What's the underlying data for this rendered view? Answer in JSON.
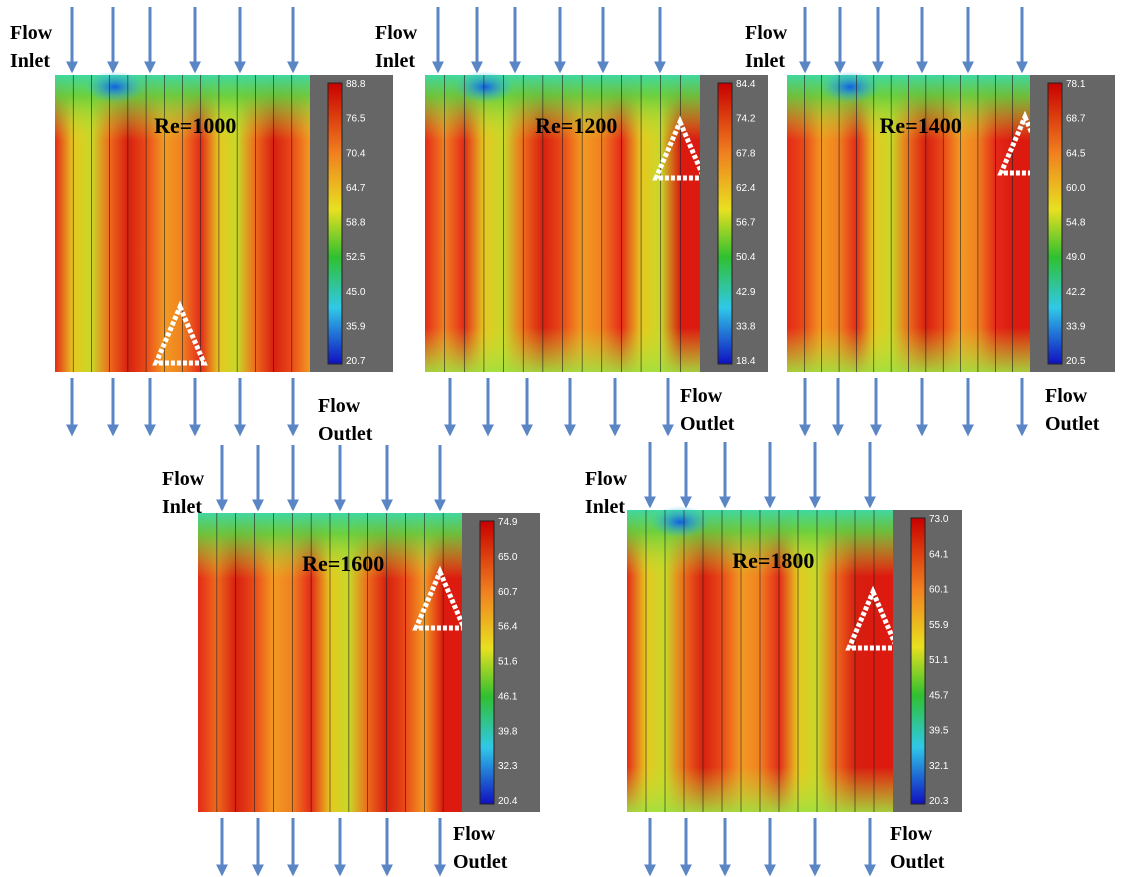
{
  "panels": [
    {
      "label": "Re=1000",
      "inlet": [
        "Flow",
        "Inlet"
      ],
      "outlet": [
        "Flow",
        "Outlet"
      ],
      "scale": [
        "88.8",
        "76.5",
        "70.4",
        "64.7",
        "58.8",
        "52.5",
        "45.0",
        "35.9",
        "20.7"
      ]
    },
    {
      "label": "Re=1200",
      "inlet": [
        "Flow",
        "Inlet"
      ],
      "outlet": [
        "Flow",
        "Outlet"
      ],
      "scale": [
        "84.4",
        "74.2",
        "67.8",
        "62.4",
        "56.7",
        "50.4",
        "42.9",
        "33.8",
        "18.4"
      ]
    },
    {
      "label": "Re=1400",
      "inlet": [
        "Flow",
        "Inlet"
      ],
      "outlet": [
        "Flow",
        "Outlet"
      ],
      "scale": [
        "78.1",
        "68.7",
        "64.5",
        "60.0",
        "54.8",
        "49.0",
        "42.2",
        "33.9",
        "20.5"
      ]
    },
    {
      "label": "Re=1600",
      "inlet": [
        "Flow",
        "Inlet"
      ],
      "outlet": [
        "Flow",
        "Outlet"
      ],
      "scale": [
        "74.9",
        "65.0",
        "60.7",
        "56.4",
        "51.6",
        "46.1",
        "39.8",
        "32.3",
        "20.4"
      ]
    },
    {
      "label": "Re=1800",
      "inlet": [
        "Flow",
        "Inlet"
      ],
      "outlet": [
        "Flow",
        "Outlet"
      ],
      "scale": [
        "73.0",
        "64.1",
        "60.1",
        "55.9",
        "51.1",
        "45.7",
        "39.5",
        "32.1",
        "20.3"
      ]
    }
  ]
}
